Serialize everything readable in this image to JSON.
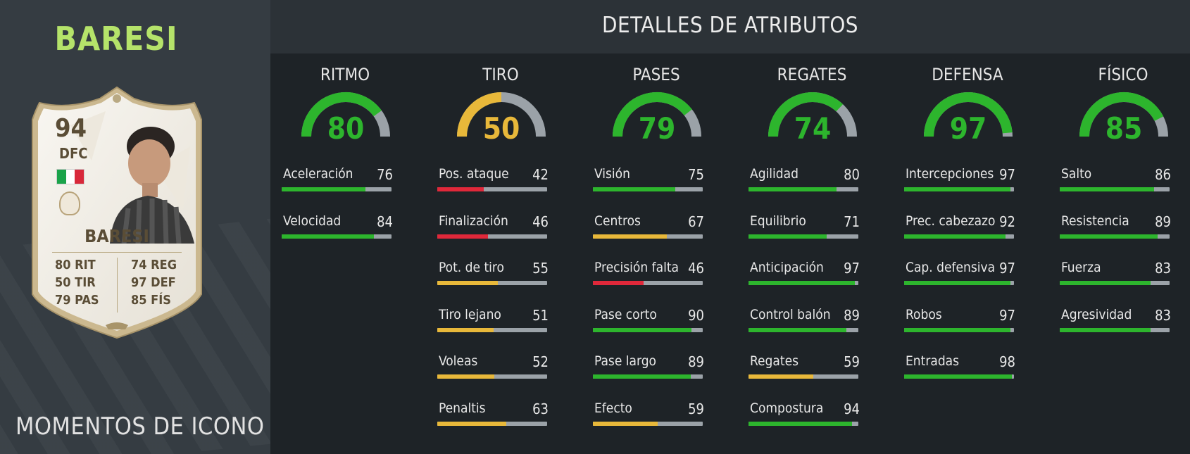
{
  "colors": {
    "green": "#2db52d",
    "red": "#e0283a",
    "yellow": "#e8b83a",
    "track": "#9ba2a8",
    "accent_name": "#b5e36a"
  },
  "player": {
    "header_name": "BARESI",
    "card_type": "MOMENTOS DE ICONO"
  },
  "card": {
    "rating": "94",
    "position": "DFC",
    "name": "BARESI",
    "flag_icon": "italy-flag-icon",
    "badge_icon": "icon-badge",
    "stats_left": [
      "80 RIT",
      "50 TIR",
      "79 PAS"
    ],
    "stats_right": [
      "74 REG",
      "97 DEF",
      "85 FÍS"
    ]
  },
  "attributes": {
    "title": "DETALLES DE ATRIBUTOS",
    "categories": [
      {
        "name": "RITMO",
        "value": 80,
        "stats": [
          {
            "label": "Aceleración",
            "value": 76
          },
          {
            "label": "Velocidad",
            "value": 84
          }
        ]
      },
      {
        "name": "TIRO",
        "value": 50,
        "stats": [
          {
            "label": "Pos. ataque",
            "value": 42
          },
          {
            "label": "Finalización",
            "value": 46
          },
          {
            "label": "Pot. de tiro",
            "value": 55
          },
          {
            "label": "Tiro lejano",
            "value": 51
          },
          {
            "label": "Voleas",
            "value": 52
          },
          {
            "label": "Penaltis",
            "value": 63
          }
        ]
      },
      {
        "name": "PASES",
        "value": 79,
        "stats": [
          {
            "label": "Visión",
            "value": 75
          },
          {
            "label": "Centros",
            "value": 67
          },
          {
            "label": "Precisión falta",
            "value": 46
          },
          {
            "label": "Pase corto",
            "value": 90
          },
          {
            "label": "Pase largo",
            "value": 89
          },
          {
            "label": "Efecto",
            "value": 59
          }
        ]
      },
      {
        "name": "REGATES",
        "value": 74,
        "stats": [
          {
            "label": "Agilidad",
            "value": 80
          },
          {
            "label": "Equilibrio",
            "value": 71
          },
          {
            "label": "Anticipación",
            "value": 97
          },
          {
            "label": "Control balón",
            "value": 89
          },
          {
            "label": "Regates",
            "value": 59
          },
          {
            "label": "Compostura",
            "value": 94
          }
        ]
      },
      {
        "name": "DEFENSA",
        "value": 97,
        "stats": [
          {
            "label": "Intercepciones",
            "value": 97
          },
          {
            "label": "Prec. cabezazo",
            "value": 92
          },
          {
            "label": "Cap. defensiva",
            "value": 97
          },
          {
            "label": "Robos",
            "value": 97
          },
          {
            "label": "Entradas",
            "value": 98
          }
        ]
      },
      {
        "name": "FÍSICO",
        "value": 85,
        "stats": [
          {
            "label": "Salto",
            "value": 86
          },
          {
            "label": "Resistencia",
            "value": 89
          },
          {
            "label": "Fuerza",
            "value": 83
          },
          {
            "label": "Agresividad",
            "value": 83
          }
        ]
      }
    ]
  }
}
